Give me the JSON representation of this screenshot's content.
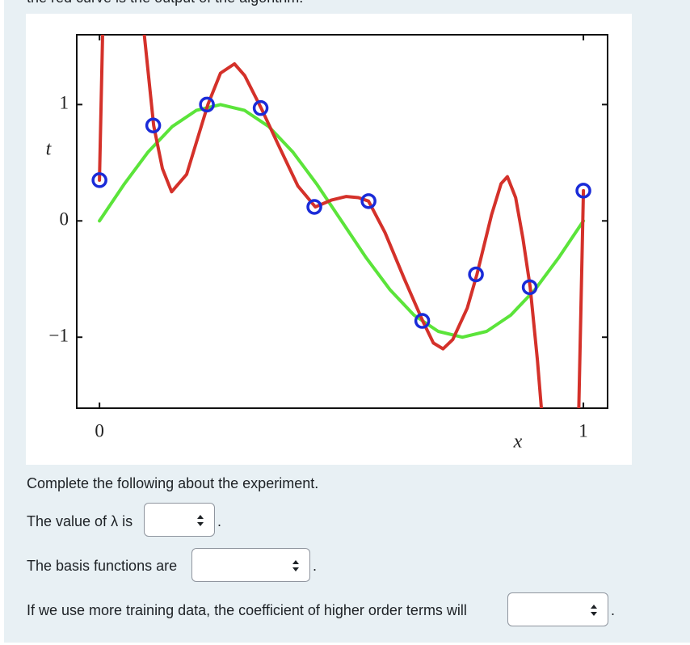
{
  "intro_text": "the red curve is the output of the algorithm.",
  "figure": {
    "chart_data": {
      "type": "line",
      "xlabel": "x",
      "ylabel": "t",
      "xlim": [
        -0.047,
        1.05
      ],
      "ylim": [
        -1.61,
        1.6
      ],
      "xticks": [
        0,
        1
      ],
      "yticks": [
        {
          "value": -1,
          "label": "−1"
        },
        0,
        1
      ],
      "series": [
        {
          "color": "#5be43a",
          "x": [
            0,
            0.05,
            0.1,
            0.15,
            0.2,
            0.25,
            0.3,
            0.35,
            0.4,
            0.45,
            0.5,
            0.55,
            0.6,
            0.65,
            0.7,
            0.75,
            0.8,
            0.85,
            0.9,
            0.95,
            1
          ],
          "values": [
            0,
            0.31,
            0.59,
            0.81,
            0.95,
            1,
            0.95,
            0.81,
            0.59,
            0.31,
            0,
            -0.31,
            -0.59,
            -0.81,
            -0.95,
            -1,
            -0.95,
            -0.81,
            -0.59,
            -0.31,
            0
          ]
        },
        {
          "color": "#d4312a",
          "x": [
            0,
            0.007,
            null,
            0.09,
            0.112,
            0.13,
            0.149,
            0.18,
            0.224,
            0.25,
            0.279,
            0.3,
            0.334,
            0.37,
            0.41,
            0.446,
            0.48,
            0.51,
            0.535,
            0.556,
            0.59,
            0.63,
            0.668,
            0.69,
            0.71,
            0.73,
            0.76,
            0.78,
            0.81,
            0.83,
            0.843,
            0.86,
            0.875,
            0.89,
            0.905,
            0.915,
            null,
            0.99,
            1
          ],
          "values": [
            0.35,
            1.7,
            null,
            1.7,
            0.82,
            0.45,
            0.25,
            0.4,
            1.0,
            1.27,
            1.35,
            1.25,
            0.97,
            0.65,
            0.3,
            0.12,
            0.18,
            0.21,
            0.2,
            0.17,
            -0.1,
            -0.5,
            -0.86,
            -1.05,
            -1.1,
            -1.02,
            -0.75,
            -0.46,
            0.05,
            0.32,
            0.38,
            0.2,
            -0.15,
            -0.57,
            -1.2,
            -1.7,
            null,
            -1.7,
            0.26
          ]
        },
        {
          "color": "#1a2bd8",
          "marker": "circle",
          "x": [
            0,
            0.111,
            0.222,
            0.333,
            0.444,
            0.556,
            0.667,
            0.778,
            0.889,
            1
          ],
          "values": [
            0.35,
            0.82,
            1.0,
            0.97,
            0.12,
            0.17,
            -0.86,
            -0.46,
            -0.57,
            0.26
          ]
        }
      ]
    }
  },
  "prompt": "Complete the following about the experiment.",
  "questions": [
    {
      "before": "The value of λ is",
      "after": "."
    },
    {
      "before": "The basis functions are",
      "after": "."
    },
    {
      "before": "If we use more training data, the coefficient of higher order terms will",
      "after": "."
    }
  ]
}
